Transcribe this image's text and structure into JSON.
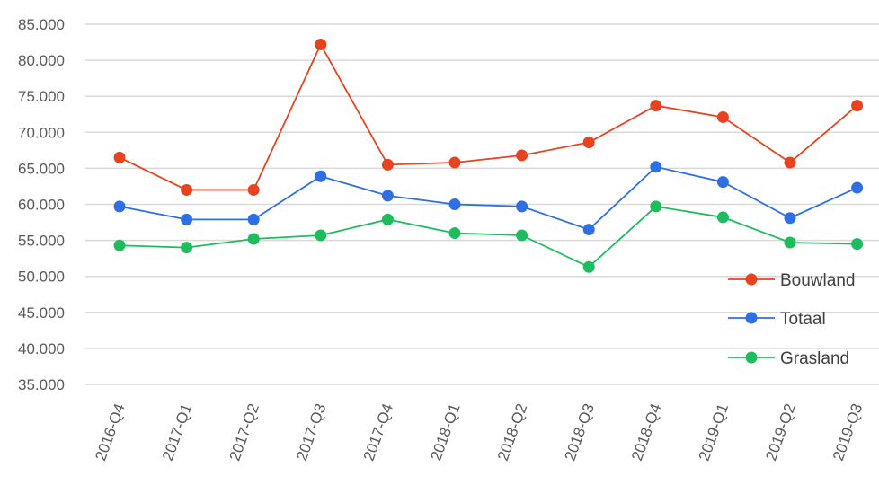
{
  "chart_data": {
    "type": "line",
    "title": "",
    "xlabel": "",
    "ylabel": "",
    "categories": [
      "2016-Q4",
      "2017-Q1",
      "2017-Q2",
      "2017-Q3",
      "2017-Q4",
      "2018-Q1",
      "2018-Q2",
      "2018-Q3",
      "2018-Q4",
      "2019-Q1",
      "2019-Q2",
      "2019-Q3"
    ],
    "ylim": [
      35000,
      85000
    ],
    "yticks": [
      85000,
      80000,
      75000,
      70000,
      65000,
      60000,
      55000,
      50000,
      45000,
      40000,
      35000
    ],
    "ytick_labels": [
      "85.000",
      "80.000",
      "75.000",
      "70.000",
      "65.000",
      "60.000",
      "55.000",
      "50.000",
      "45.000",
      "40.000",
      "35.000"
    ],
    "grid": true,
    "legend_position": "right",
    "series": [
      {
        "name": "Bouwland",
        "color": "#e8431f",
        "values": [
          66500,
          62000,
          62000,
          82200,
          65500,
          65800,
          66800,
          68600,
          73700,
          72100,
          65800,
          73700
        ]
      },
      {
        "name": "Totaal",
        "color": "#2f6fe4",
        "values": [
          59700,
          57900,
          57900,
          63900,
          61200,
          60000,
          59700,
          56500,
          65200,
          63100,
          58100,
          62300
        ]
      },
      {
        "name": "Grasland",
        "color": "#1dbd5e",
        "values": [
          54300,
          54000,
          55200,
          55700,
          57900,
          56000,
          55700,
          51300,
          59700,
          58200,
          54700,
          54500
        ]
      }
    ]
  }
}
